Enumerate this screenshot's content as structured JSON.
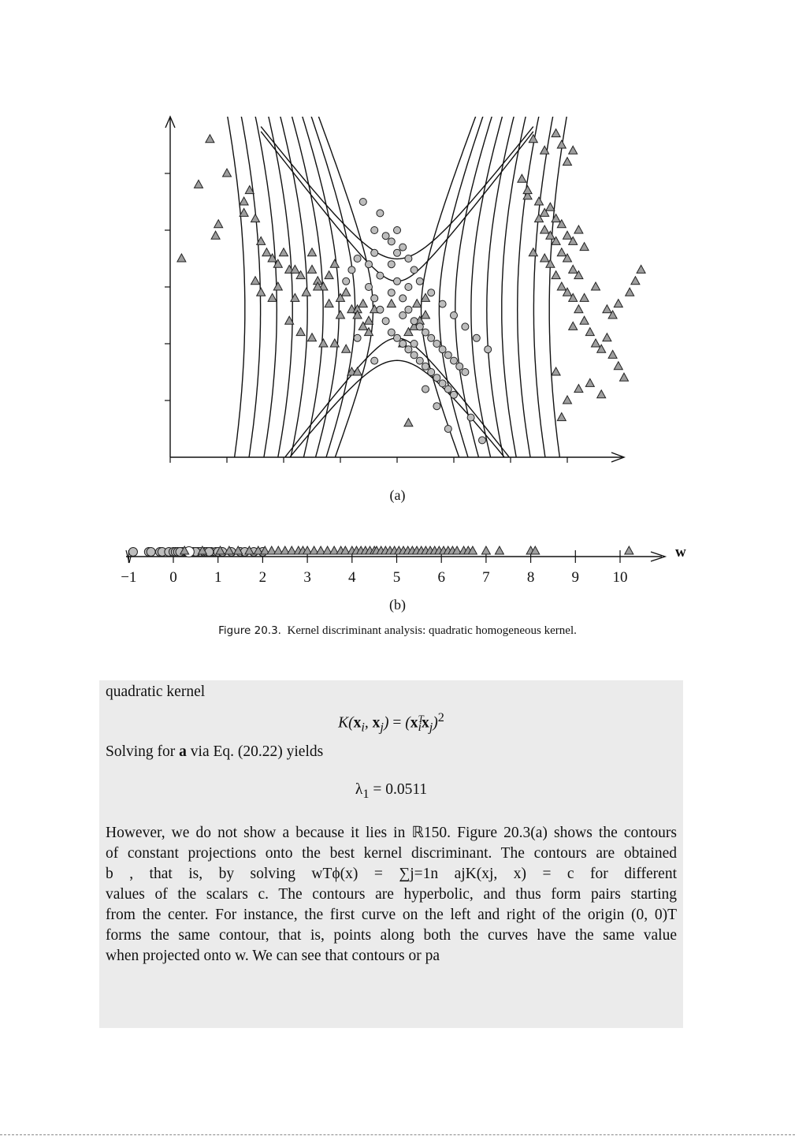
{
  "figure_a": {
    "label": "(a)",
    "chart_data": {
      "type": "scatter",
      "title": "",
      "xlabel": "",
      "ylabel": "",
      "axis_tick_labels": "none",
      "contours": "hyperbolic, symmetric pairs about the center",
      "series": [
        {
          "marker": "triangle",
          "fill": "#9e9e9e",
          "points": [
            [
              0.2,
              3.5
            ],
            [
              0.5,
              4.8
            ],
            [
              0.7,
              5.6
            ],
            [
              0.8,
              3.9
            ],
            [
              0.85,
              4.1
            ],
            [
              1.0,
              5.0
            ],
            [
              1.3,
              4.5
            ],
            [
              1.4,
              4.7
            ],
            [
              1.5,
              4.2
            ],
            [
              1.6,
              3.8
            ],
            [
              1.7,
              3.6
            ],
            [
              1.8,
              3.5
            ],
            [
              1.9,
              3.4
            ],
            [
              2.0,
              3.6
            ],
            [
              2.1,
              3.3
            ],
            [
              1.5,
              3.1
            ],
            [
              1.6,
              2.9
            ],
            [
              1.8,
              2.8
            ],
            [
              1.9,
              3.0
            ],
            [
              2.2,
              2.8
            ],
            [
              2.4,
              2.9
            ],
            [
              2.5,
              3.3
            ],
            [
              2.6,
              3.1
            ],
            [
              2.7,
              3.0
            ],
            [
              2.8,
              2.7
            ],
            [
              3.0,
              2.8
            ],
            [
              3.2,
              2.6
            ],
            [
              3.0,
              2.5
            ],
            [
              3.1,
              2.9
            ],
            [
              3.3,
              2.6
            ],
            [
              3.4,
              2.7
            ],
            [
              2.2,
              3.3
            ],
            [
              2.3,
              3.2
            ],
            [
              2.5,
              3.6
            ],
            [
              2.6,
              3.0
            ],
            [
              2.8,
              3.2
            ],
            [
              2.9,
              3.4
            ],
            [
              2.1,
              2.4
            ],
            [
              2.3,
              2.2
            ],
            [
              2.5,
              2.1
            ],
            [
              2.7,
              2.0
            ],
            [
              2.9,
              2.0
            ],
            [
              3.1,
              1.9
            ],
            [
              3.3,
              2.5
            ],
            [
              3.5,
              2.4
            ],
            [
              3.6,
              2.6
            ],
            [
              3.9,
              2.7
            ],
            [
              3.2,
              1.5
            ],
            [
              3.3,
              1.5
            ],
            [
              3.5,
              2.2
            ],
            [
              3.4,
              2.3
            ],
            [
              1.3,
              4.3
            ],
            [
              4.1,
              2.0
            ],
            [
              4.2,
              2.2
            ],
            [
              4.35,
              2.7
            ],
            [
              4.5,
              2.8
            ],
            [
              4.5,
              2.5
            ],
            [
              4.3,
              2.3
            ],
            [
              4.4,
              2.4
            ],
            [
              4.2,
              0.6
            ],
            [
              6.4,
              5.6
            ],
            [
              6.6,
              5.4
            ],
            [
              6.8,
              5.7
            ],
            [
              6.9,
              5.5
            ],
            [
              7.0,
              5.2
            ],
            [
              7.1,
              5.4
            ],
            [
              6.2,
              4.9
            ],
            [
              6.3,
              4.6
            ],
            [
              6.5,
              4.5
            ],
            [
              6.6,
              4.3
            ],
            [
              6.7,
              4.4
            ],
            [
              6.8,
              4.2
            ],
            [
              6.9,
              4.1
            ],
            [
              7.0,
              3.9
            ],
            [
              7.1,
              3.8
            ],
            [
              7.2,
              4.0
            ],
            [
              7.3,
              3.7
            ],
            [
              6.3,
              4.7
            ],
            [
              6.5,
              4.2
            ],
            [
              6.6,
              4.0
            ],
            [
              6.7,
              3.9
            ],
            [
              6.8,
              3.8
            ],
            [
              6.9,
              3.6
            ],
            [
              7.0,
              3.5
            ],
            [
              7.1,
              3.3
            ],
            [
              7.2,
              3.2
            ],
            [
              6.4,
              3.6
            ],
            [
              6.6,
              3.5
            ],
            [
              6.7,
              3.4
            ],
            [
              6.8,
              3.2
            ],
            [
              6.9,
              3.0
            ],
            [
              7.0,
              2.9
            ],
            [
              7.1,
              2.8
            ],
            [
              7.2,
              2.6
            ],
            [
              7.3,
              2.4
            ],
            [
              7.4,
              2.2
            ],
            [
              7.5,
              2.0
            ],
            [
              7.6,
              1.9
            ],
            [
              7.7,
              2.1
            ],
            [
              7.8,
              1.8
            ],
            [
              7.9,
              1.6
            ],
            [
              8.0,
              1.4
            ],
            [
              7.8,
              2.5
            ],
            [
              7.7,
              2.6
            ],
            [
              7.9,
              2.7
            ],
            [
              8.1,
              2.9
            ],
            [
              8.2,
              3.1
            ],
            [
              8.3,
              3.3
            ],
            [
              6.9,
              0.7
            ],
            [
              7.0,
              1.0
            ],
            [
              7.2,
              1.2
            ],
            [
              7.4,
              1.3
            ],
            [
              7.6,
              1.1
            ],
            [
              6.8,
              1.5
            ],
            [
              7.1,
              2.3
            ],
            [
              7.3,
              2.8
            ],
            [
              7.5,
              3.0
            ]
          ]
        },
        {
          "marker": "circle",
          "fill": "#bdbdbd",
          "points": [
            [
              3.4,
              4.5
            ],
            [
              3.6,
              4.0
            ],
            [
              3.7,
              4.3
            ],
            [
              3.9,
              3.8
            ],
            [
              4.0,
              3.6
            ],
            [
              4.1,
              3.7
            ],
            [
              4.2,
              3.5
            ],
            [
              4.3,
              3.3
            ],
            [
              4.0,
              4.0
            ],
            [
              3.8,
              3.9
            ],
            [
              3.9,
              3.4
            ],
            [
              4.0,
              3.1
            ],
            [
              4.1,
              2.8
            ],
            [
              4.2,
              2.6
            ],
            [
              4.3,
              2.4
            ],
            [
              4.4,
              2.3
            ],
            [
              4.5,
              2.2
            ],
            [
              4.6,
              2.1
            ],
            [
              4.7,
              2.0
            ],
            [
              4.8,
              1.9
            ],
            [
              4.9,
              1.8
            ],
            [
              5.0,
              1.7
            ],
            [
              5.1,
              1.6
            ],
            [
              5.2,
              1.5
            ],
            [
              3.5,
              3.0
            ],
            [
              3.6,
              2.8
            ],
            [
              3.7,
              2.6
            ],
            [
              3.8,
              2.4
            ],
            [
              3.9,
              2.2
            ],
            [
              4.0,
              2.1
            ],
            [
              4.1,
              2.0
            ],
            [
              4.2,
              1.9
            ],
            [
              4.3,
              1.8
            ],
            [
              4.4,
              1.7
            ],
            [
              4.5,
              1.6
            ],
            [
              4.6,
              1.5
            ],
            [
              4.7,
              1.4
            ],
            [
              4.8,
              1.3
            ],
            [
              4.9,
              1.2
            ],
            [
              5.0,
              1.1
            ],
            [
              3.3,
              3.5
            ],
            [
              3.2,
              3.3
            ],
            [
              3.1,
              3.1
            ],
            [
              3.6,
              3.6
            ],
            [
              3.5,
              3.4
            ],
            [
              4.2,
              3.0
            ],
            [
              4.4,
              3.1
            ],
            [
              4.6,
              2.9
            ],
            [
              4.8,
              2.7
            ],
            [
              5.0,
              2.5
            ],
            [
              5.2,
              2.3
            ],
            [
              5.4,
              2.1
            ],
            [
              5.6,
              1.9
            ],
            [
              3.7,
              3.2
            ],
            [
              3.9,
              2.9
            ],
            [
              4.1,
              2.5
            ],
            [
              4.3,
              2.0
            ],
            [
              4.5,
              1.2
            ],
            [
              4.7,
              0.9
            ],
            [
              4.9,
              0.5
            ],
            [
              5.3,
              0.7
            ],
            [
              5.5,
              0.3
            ],
            [
              3.3,
              2.1
            ],
            [
              3.6,
              1.7
            ]
          ]
        }
      ]
    }
  },
  "figure_b": {
    "label": "(b)",
    "axis_label": "w",
    "chart_data": {
      "type": "scatter",
      "xlim": [
        -1,
        10.5
      ],
      "ticks": [
        "−1",
        "0",
        "1",
        "2",
        "3",
        "4",
        "5",
        "6",
        "7",
        "8",
        "9",
        "10"
      ],
      "series": [
        {
          "marker": "circle",
          "fill": "#bdbdbd",
          "x": [
            -0.9,
            -0.55,
            -0.5,
            -0.3,
            -0.25,
            -0.1,
            0.0,
            0.05,
            0.1,
            0.2,
            0.3,
            0.45,
            0.55,
            0.6,
            0.7,
            0.75,
            0.85,
            0.95,
            1.0,
            1.1,
            1.3,
            1.5,
            1.6,
            1.8,
            2.0,
            0.15,
            0.5,
            0.8
          ]
        },
        {
          "marker": "circle",
          "fill": "#ffffff",
          "x": [
            0.35
          ]
        },
        {
          "marker": "triangle",
          "fill": "#9e9e9e",
          "x": [
            0.25,
            0.65,
            1.05,
            1.25,
            1.45,
            1.7,
            1.9,
            2.05,
            2.2,
            2.35,
            2.5,
            2.65,
            2.8,
            2.9,
            3.0,
            3.15,
            3.3,
            3.45,
            3.6,
            3.75,
            3.85,
            4.0,
            4.1,
            4.2,
            4.3,
            4.4,
            4.5,
            4.55,
            4.65,
            4.75,
            4.85,
            4.95,
            5.05,
            5.15,
            5.25,
            5.35,
            5.45,
            5.55,
            5.65,
            5.75,
            5.85,
            5.95,
            6.05,
            6.15,
            6.25,
            6.35,
            6.5,
            6.6,
            6.7,
            7.0,
            7.3,
            8.0,
            8.1,
            10.2
          ]
        }
      ]
    }
  },
  "caption": {
    "number": "Figure 20.3.",
    "text": "Kernel discriminant analysis: quadratic homogeneous kernel."
  },
  "body": {
    "intro": "quadratic kernel",
    "eq_kernel": "K(xi, xj) = (xiTxj)2",
    "solve_pre": "Solving for ",
    "solve_bold": "a",
    "solve_post": " via Eq. (20.22) yields",
    "eq_lambda": "λ1 = 0.0511",
    "para_lines": [
      "However, we do not show a because it lies in ℝ150. Figure 20.3(a) shows the contours",
      "of constant projections onto the best kernel discriminant. The contours are obtained",
      "b                              , that is, by solving wTϕ(x) = ∑j=1n ajK(xj, x) = c for different",
      "values of the scalars c. The contours are hyperbolic, and thus form pairs starting",
      "from the center. For instance, the first curve on the left and right of the origin (0, 0)T",
      "forms the same contour, that is, points along both the curves have the same value",
      "when projected onto w. We can see that contours or pa"
    ]
  }
}
